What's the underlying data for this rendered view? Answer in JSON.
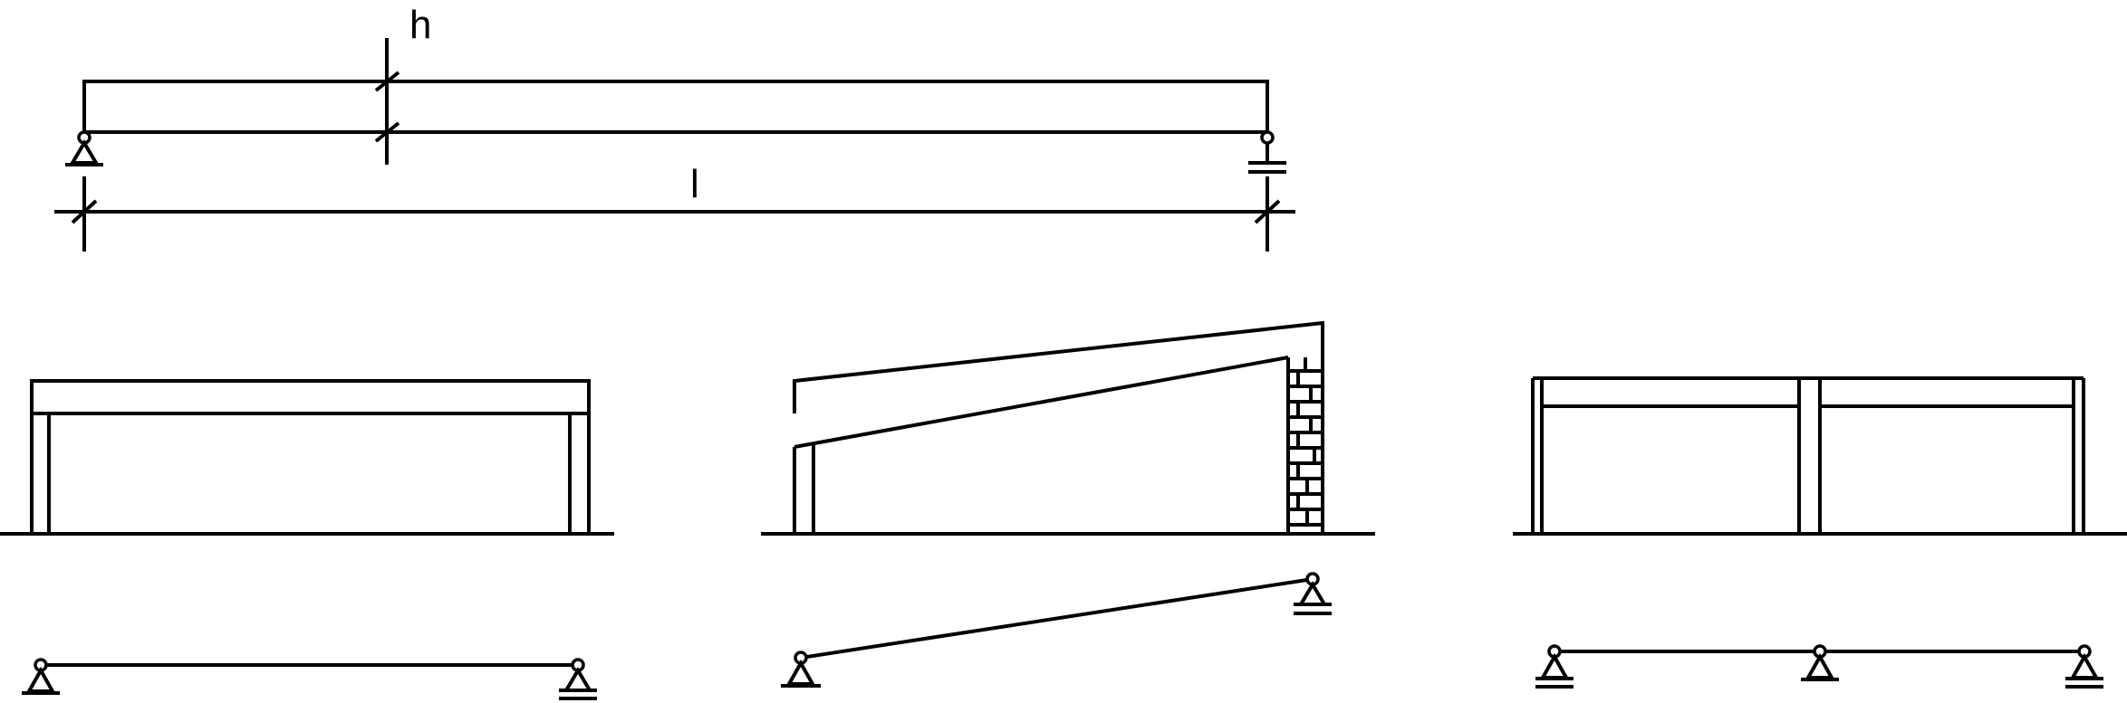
{
  "labels": {
    "height": "h",
    "span": "l"
  }
}
